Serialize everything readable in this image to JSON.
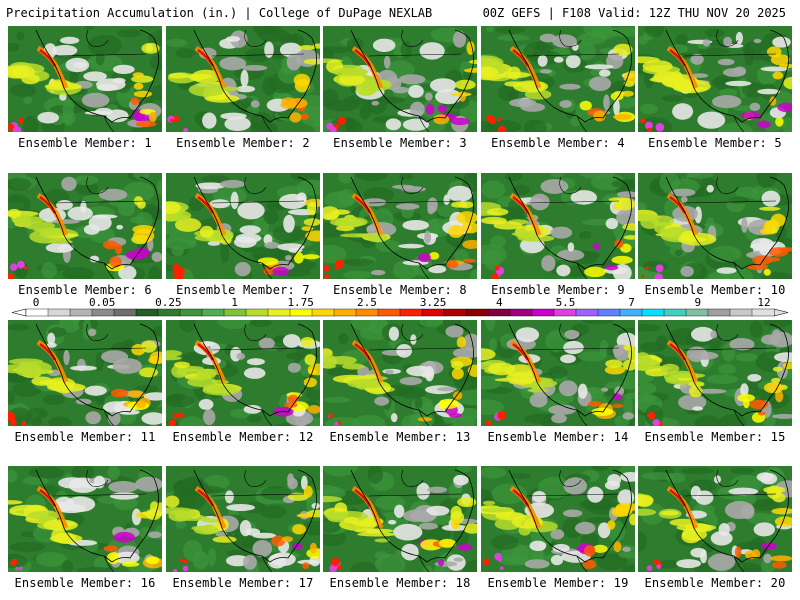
{
  "header": {
    "title": "Precipitation Accumulation (in.) | College of DuPage NEXLAB",
    "run_info": "00Z GEFS | F108 Valid: 12Z THU NOV 20 2025"
  },
  "member_label_prefix": "Ensemble Member: ",
  "members": [
    1,
    2,
    3,
    4,
    5,
    6,
    7,
    8,
    9,
    10,
    11,
    12,
    13,
    14,
    15,
    16,
    17,
    18,
    19,
    20
  ],
  "color_scale": {
    "tick_labels": [
      "0",
      "0.05",
      "0.25",
      "1",
      "1.75",
      "2.5",
      "3.25",
      "4",
      "5.5",
      "7",
      "9",
      "12"
    ],
    "colors": [
      "#ffffff",
      "#d8d8d8",
      "#b4b4b4",
      "#8c8c8c",
      "#6e6e6e",
      "#205f20",
      "#2e7d2e",
      "#3c963c",
      "#4fb04f",
      "#7fc435",
      "#b7dc2a",
      "#e8f020",
      "#ffff00",
      "#ffd700",
      "#ffb000",
      "#ff8c00",
      "#ff5a00",
      "#ff2000",
      "#e00000",
      "#b00000",
      "#8a0000",
      "#800040",
      "#a00080",
      "#cc00cc",
      "#e040e0",
      "#a060ff",
      "#6080ff",
      "#40b0ff",
      "#00e0ff",
      "#40d0c0",
      "#80c0a0",
      "#a0a0a0",
      "#c8c8c8",
      "#e0e0e0"
    ]
  }
}
